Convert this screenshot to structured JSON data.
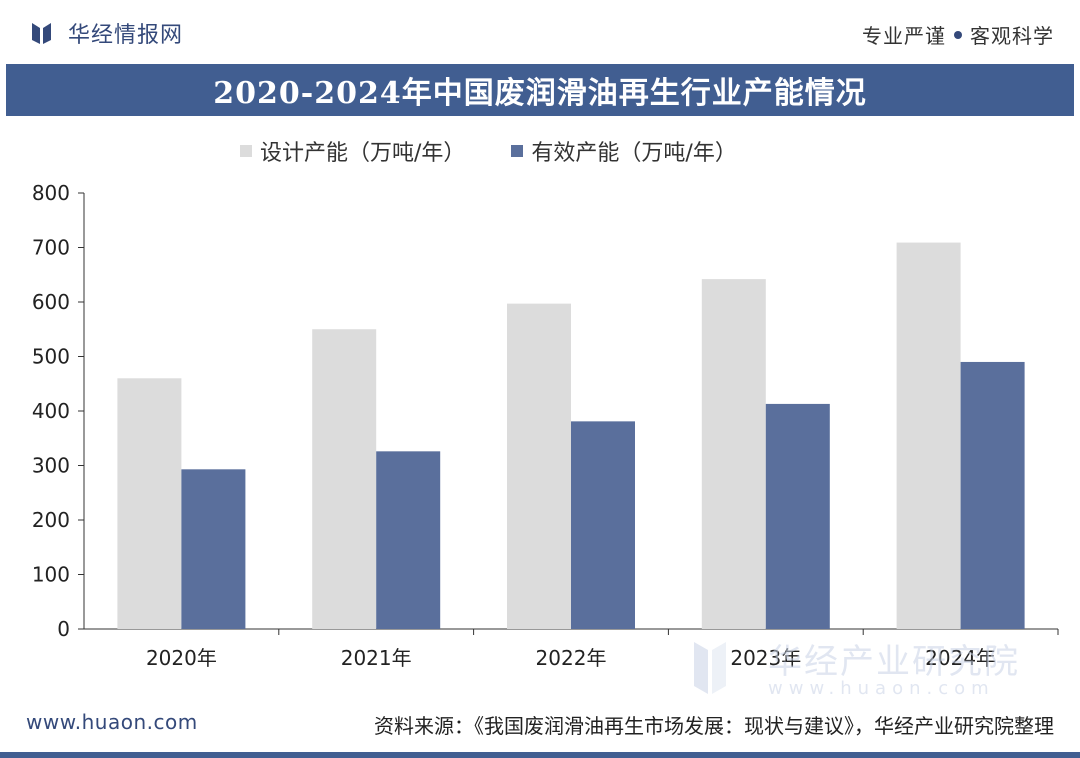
{
  "header": {
    "brand_name": "华经情报网",
    "slogan_left": "专业严谨",
    "slogan_right": "客观科学"
  },
  "footer": {
    "website": "www.huaon.com",
    "source": "资料来源：《我国废润滑油再生市场发展：现状与建议》，华经产业研究院整理"
  },
  "watermark": {
    "name": "华经产业研究院",
    "url": "www.huaon.com"
  },
  "colors": {
    "header_bar": "#415e91",
    "design_series": "#dcdcdc",
    "effective_series": "#5a6f9c"
  },
  "chart_data": {
    "type": "bar",
    "title": "2020-2024年中国废润滑油再生行业产能情况",
    "categories": [
      "2020年",
      "2021年",
      "2022年",
      "2023年",
      "2024年"
    ],
    "series": [
      {
        "name": "设计产能（万吨/年）",
        "values": [
          460,
          550,
          597,
          642,
          709
        ]
      },
      {
        "name": "有效产能（万吨/年）",
        "values": [
          293,
          326,
          381,
          413,
          490
        ]
      }
    ],
    "ylim": [
      0,
      800
    ],
    "yticks": [
      "0",
      "100",
      "200",
      "300",
      "400",
      "500",
      "600",
      "700",
      "800"
    ],
    "legend": "top",
    "grid": false
  }
}
